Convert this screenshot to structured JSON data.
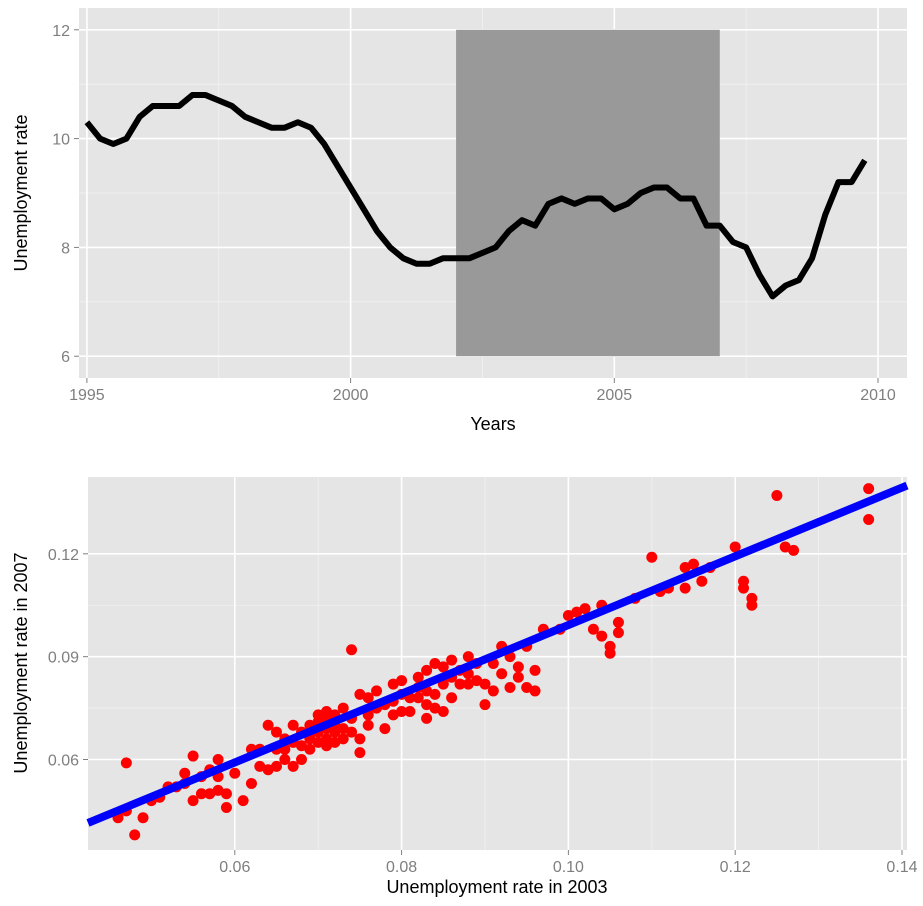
{
  "chart_data": [
    {
      "type": "line",
      "xlabel": "Years",
      "ylabel": "Unemployment rate",
      "xlim": [
        1994.85,
        2010.55
      ],
      "ylim": [
        5.6,
        12.4
      ],
      "x_ticks": [
        1995,
        2000,
        2005,
        2010
      ],
      "x_tick_labels": [
        "1995",
        "2000",
        "2005",
        "2010"
      ],
      "y_ticks": [
        6,
        8,
        10,
        12
      ],
      "y_tick_labels": [
        "6",
        "8",
        "10",
        "12"
      ],
      "shaded_region": {
        "x": [
          2002,
          2007
        ],
        "y": [
          6,
          12
        ],
        "color": "#999999"
      },
      "grid": true,
      "line_color": "#000000",
      "series": [
        {
          "x": [
            1995.0,
            1995.25,
            1995.5,
            1995.75,
            1996.0,
            1996.25,
            1996.5,
            1996.75,
            1997.0,
            1997.25,
            1997.5,
            1997.75,
            1998.0,
            1998.25,
            1998.5,
            1998.75,
            1999.0,
            1999.25,
            1999.5,
            1999.75,
            2000.0,
            2000.25,
            2000.5,
            2000.75,
            2001.0,
            2001.25,
            2001.5,
            2001.75,
            2002.0,
            2002.25,
            2002.5,
            2002.75,
            2003.0,
            2003.25,
            2003.5,
            2003.75,
            2004.0,
            2004.25,
            2004.5,
            2004.75,
            2005.0,
            2005.25,
            2005.5,
            2005.75,
            2006.0,
            2006.25,
            2006.5,
            2006.75,
            2007.0,
            2007.25,
            2007.5,
            2007.75,
            2008.0,
            2008.25,
            2008.5,
            2008.75,
            2009.0,
            2009.25,
            2009.5,
            2009.75
          ],
          "y": [
            10.3,
            10.0,
            9.9,
            10.0,
            10.4,
            10.6,
            10.6,
            10.6,
            10.8,
            10.8,
            10.7,
            10.6,
            10.4,
            10.3,
            10.2,
            10.2,
            10.3,
            10.2,
            9.9,
            9.5,
            9.1,
            8.7,
            8.3,
            8.0,
            7.8,
            7.7,
            7.7,
            7.8,
            7.8,
            7.8,
            7.9,
            8.0,
            8.3,
            8.5,
            8.4,
            8.8,
            8.9,
            8.8,
            8.9,
            8.9,
            8.7,
            8.8,
            9.0,
            9.1,
            9.1,
            8.9,
            8.9,
            8.4,
            8.4,
            8.1,
            8.0,
            7.5,
            7.1,
            7.3,
            7.4,
            7.8,
            8.6,
            9.2,
            9.2,
            9.6
          ]
        }
      ]
    },
    {
      "type": "scatter",
      "xlabel": "Unemployment rate in 2003",
      "ylabel": "Unemployment rate in 2007",
      "xlim": [
        0.0424,
        0.1406
      ],
      "ylim": [
        0.0336,
        0.1424
      ],
      "x_ticks": [
        0.06,
        0.08,
        0.1,
        0.12,
        0.14
      ],
      "x_tick_labels": [
        "0.06",
        "0.08",
        "0.10",
        "0.12",
        "0.14"
      ],
      "y_ticks": [
        0.06,
        0.09,
        0.12
      ],
      "y_tick_labels": [
        "0.06",
        "0.09",
        "0.12"
      ],
      "grid": true,
      "point_color": "#ff0000",
      "fit_line_color": "#0000ff",
      "fit_line": {
        "x": [
          0.0424,
          0.1406
        ],
        "y": [
          0.0415,
          0.1399
        ]
      },
      "points": {
        "x": [
          0.046,
          0.047,
          0.047,
          0.048,
          0.049,
          0.05,
          0.051,
          0.052,
          0.053,
          0.054,
          0.054,
          0.055,
          0.055,
          0.056,
          0.056,
          0.057,
          0.057,
          0.058,
          0.058,
          0.058,
          0.059,
          0.059,
          0.06,
          0.061,
          0.062,
          0.062,
          0.063,
          0.063,
          0.064,
          0.064,
          0.065,
          0.065,
          0.065,
          0.066,
          0.066,
          0.066,
          0.067,
          0.067,
          0.067,
          0.068,
          0.068,
          0.068,
          0.069,
          0.069,
          0.069,
          0.07,
          0.07,
          0.07,
          0.07,
          0.071,
          0.071,
          0.071,
          0.071,
          0.071,
          0.072,
          0.072,
          0.072,
          0.072,
          0.073,
          0.073,
          0.073,
          0.074,
          0.074,
          0.074,
          0.075,
          0.075,
          0.075,
          0.076,
          0.076,
          0.076,
          0.077,
          0.077,
          0.078,
          0.078,
          0.079,
          0.079,
          0.079,
          0.08,
          0.08,
          0.08,
          0.081,
          0.081,
          0.082,
          0.082,
          0.082,
          0.083,
          0.083,
          0.083,
          0.083,
          0.084,
          0.084,
          0.084,
          0.085,
          0.085,
          0.085,
          0.086,
          0.086,
          0.086,
          0.087,
          0.087,
          0.088,
          0.088,
          0.088,
          0.089,
          0.089,
          0.09,
          0.09,
          0.091,
          0.091,
          0.092,
          0.092,
          0.093,
          0.093,
          0.094,
          0.094,
          0.095,
          0.095,
          0.096,
          0.096,
          0.097,
          0.099,
          0.1,
          0.101,
          0.102,
          0.103,
          0.104,
          0.104,
          0.105,
          0.105,
          0.106,
          0.106,
          0.108,
          0.11,
          0.111,
          0.112,
          0.114,
          0.114,
          0.115,
          0.116,
          0.117,
          0.12,
          0.121,
          0.121,
          0.122,
          0.122,
          0.125,
          0.126,
          0.127,
          0.136,
          0.136
        ],
        "y": [
          0.043,
          0.045,
          0.059,
          0.038,
          0.043,
          0.048,
          0.049,
          0.052,
          0.052,
          0.056,
          0.053,
          0.048,
          0.061,
          0.05,
          0.055,
          0.057,
          0.05,
          0.055,
          0.051,
          0.06,
          0.046,
          0.05,
          0.056,
          0.048,
          0.053,
          0.063,
          0.058,
          0.063,
          0.057,
          0.07,
          0.058,
          0.063,
          0.068,
          0.06,
          0.063,
          0.066,
          0.058,
          0.065,
          0.07,
          0.06,
          0.064,
          0.068,
          0.063,
          0.066,
          0.07,
          0.065,
          0.068,
          0.071,
          0.073,
          0.064,
          0.066,
          0.069,
          0.072,
          0.074,
          0.065,
          0.068,
          0.07,
          0.073,
          0.066,
          0.069,
          0.075,
          0.068,
          0.072,
          0.092,
          0.062,
          0.066,
          0.079,
          0.07,
          0.073,
          0.078,
          0.075,
          0.08,
          0.069,
          0.076,
          0.073,
          0.077,
          0.082,
          0.074,
          0.079,
          0.083,
          0.074,
          0.078,
          0.078,
          0.081,
          0.084,
          0.072,
          0.076,
          0.08,
          0.086,
          0.075,
          0.079,
          0.088,
          0.074,
          0.082,
          0.087,
          0.078,
          0.084,
          0.089,
          0.082,
          0.086,
          0.082,
          0.085,
          0.09,
          0.083,
          0.088,
          0.076,
          0.082,
          0.08,
          0.088,
          0.085,
          0.093,
          0.081,
          0.09,
          0.084,
          0.087,
          0.081,
          0.093,
          0.08,
          0.086,
          0.098,
          0.098,
          0.102,
          0.103,
          0.104,
          0.098,
          0.096,
          0.105,
          0.091,
          0.093,
          0.097,
          0.1,
          0.107,
          0.119,
          0.109,
          0.11,
          0.11,
          0.116,
          0.117,
          0.112,
          0.116,
          0.122,
          0.11,
          0.112,
          0.105,
          0.107,
          0.137,
          0.122,
          0.121,
          0.139,
          0.13
        ]
      }
    }
  ]
}
